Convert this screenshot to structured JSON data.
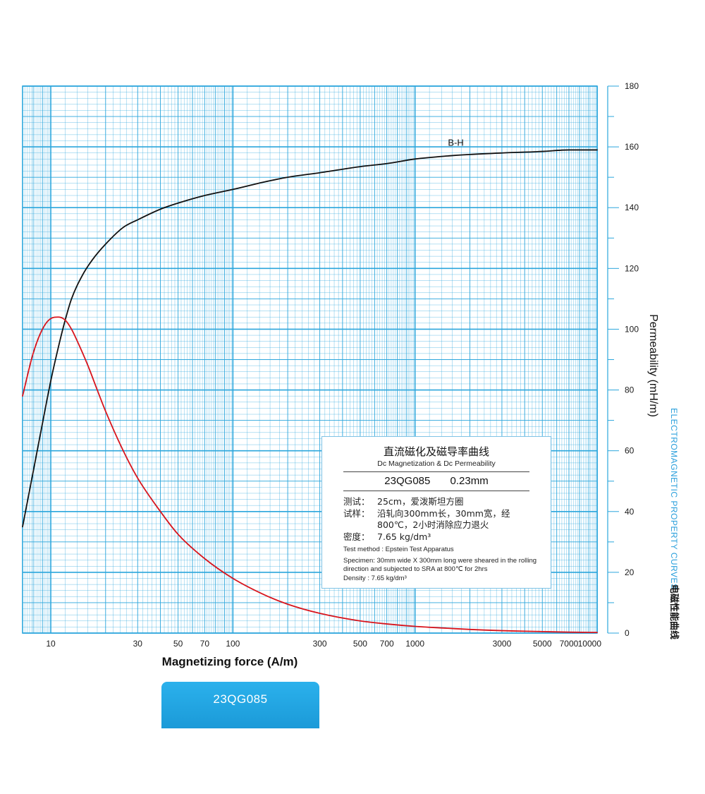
{
  "chart_data": {
    "type": "line",
    "xlabel": "Magnetizing force (A/m)",
    "ylabel": "Permeability (mH/m)",
    "x_scale": "log",
    "xlim": [
      7,
      10000
    ],
    "ylim": [
      0,
      180
    ],
    "x_ticks": [
      {
        "value": 10,
        "label": "10"
      },
      {
        "value": 30,
        "label": "30"
      },
      {
        "value": 50,
        "label": "50"
      },
      {
        "value": 70,
        "label": "70"
      },
      {
        "value": 100,
        "label": "100"
      },
      {
        "value": 300,
        "label": "300"
      },
      {
        "value": 500,
        "label": "500"
      },
      {
        "value": 700,
        "label": "700"
      },
      {
        "value": 1000,
        "label": "1000"
      },
      {
        "value": 3000,
        "label": "3000"
      },
      {
        "value": 5000,
        "label": "5000"
      },
      {
        "value": 7000,
        "label": "7000"
      },
      {
        "value": 10000,
        "label": "10000"
      }
    ],
    "y_ticks": [
      {
        "value": 0,
        "label": "0"
      },
      {
        "value": 20,
        "label": "20"
      },
      {
        "value": 40,
        "label": "40"
      },
      {
        "value": 60,
        "label": "60"
      },
      {
        "value": 80,
        "label": "80"
      },
      {
        "value": 100,
        "label": "100"
      },
      {
        "value": 120,
        "label": "120"
      },
      {
        "value": 140,
        "label": "140"
      },
      {
        "value": 160,
        "label": "160"
      },
      {
        "value": 180,
        "label": "180"
      }
    ],
    "grid": true,
    "series": [
      {
        "name": "B-H",
        "color": "#111111",
        "x": [
          7,
          8,
          9,
          10,
          11,
          12,
          13,
          15,
          17,
          20,
          25,
          30,
          40,
          50,
          70,
          100,
          150,
          200,
          300,
          500,
          700,
          1000,
          1500,
          2000,
          3000,
          5000,
          7000,
          10000
        ],
        "y": [
          35,
          53,
          69,
          83,
          94,
          103,
          110,
          118,
          123,
          128,
          133.5,
          136,
          139.5,
          141.5,
          144,
          146,
          148.5,
          150,
          151.5,
          153.5,
          154.5,
          156,
          157,
          157.5,
          158,
          158.5,
          159,
          159
        ]
      },
      {
        "name": "",
        "color": "#d8141c",
        "x": [
          7,
          8,
          9,
          10,
          11,
          12,
          13,
          14,
          16,
          18,
          20,
          25,
          30,
          40,
          50,
          70,
          100,
          150,
          200,
          300,
          500,
          700,
          1000,
          1500,
          2000,
          3000,
          5000,
          7000,
          10000
        ],
        "y": [
          78,
          92,
          100,
          103.5,
          104,
          103,
          100,
          96,
          88,
          80,
          73,
          60,
          51,
          40,
          32.5,
          24.5,
          18,
          12.5,
          9.5,
          6.5,
          4,
          3,
          2.2,
          1.6,
          1.2,
          0.8,
          0.5,
          0.3,
          0.2
        ]
      }
    ]
  },
  "side_title_en": "ELECTROMAGNETIC PROPERTY CURVES",
  "side_title_cn": "电磁性能曲线",
  "info_box": {
    "title_cn": "直流磁化及磁导率曲线",
    "title_en": "Dc Magnetization & Dc Permeability",
    "grade": "23QG085",
    "thickness": "0.23mm",
    "test_label": "测试：",
    "test_value": "25cm，爱泼斯坦方圈",
    "specimen_label": "试样：",
    "specimen_value": "沿轧向300mm长，30mm宽，经800℃，2小时消除应力退火",
    "density_label": "密度：",
    "density_value": "7.65 kg/dm³",
    "en_test_method": "Test method : Epstein Test Apparatus",
    "en_specimen": "Specimen: 30mm wide X 300mm long were sheared in the rolling direction and subjected to SRA at 800℃ for 2hrs",
    "en_density": "Density : 7.65 kg/dm³"
  },
  "grade_button_label": "23QG085",
  "colors": {
    "grid": "#2ba6dc",
    "accent": "#1fa3e0"
  }
}
